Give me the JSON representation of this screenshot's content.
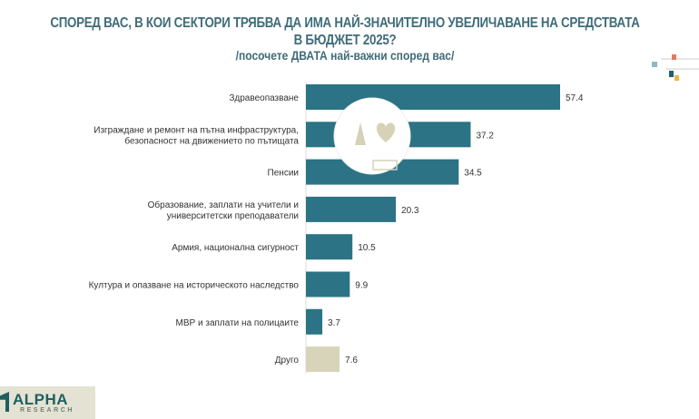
{
  "chart_data": {
    "type": "bar",
    "orientation": "horizontal",
    "title": "СПОРЕД ВАС, В КОИ СЕКТОРИ ТРЯБВА ДА ИМА НАЙ-ЗНАЧИТЕЛНО УВЕЛИЧАВАНЕ НА СРЕДСТВАТА В БЮДЖЕТ 2025?",
    "subtitle": "/посочете ДВАТА най-важни според вас/",
    "categories": [
      [
        "Здравеопазване"
      ],
      [
        "Изграждане и ремонт на пътна инфраструктура,",
        "безопасност на движението по пътищата"
      ],
      [
        "Пенсии"
      ],
      [
        "Образование, заплати на учители и",
        "университетски преподаватели"
      ],
      [
        "Армия, национална сигурност"
      ],
      [
        "Култура и опазване на историческото наследство"
      ],
      [
        "МВР и заплати на полицаите"
      ],
      [
        "Друго"
      ]
    ],
    "values": [
      57.4,
      37.2,
      34.5,
      20.3,
      10.5,
      9.9,
      3.7,
      7.6
    ],
    "value_labels": [
      "57.4",
      "37.2",
      "34.5",
      "20.3",
      "10.5",
      "9.9",
      "3.7",
      "7.6"
    ],
    "xlim": [
      0,
      60
    ],
    "grid": false,
    "colors": {
      "main": "#2b7385",
      "other": "#d7d4ba",
      "title": "#3e6c78"
    }
  },
  "logo": {
    "text": "ALPHA",
    "subtext": "RESEARCH"
  }
}
